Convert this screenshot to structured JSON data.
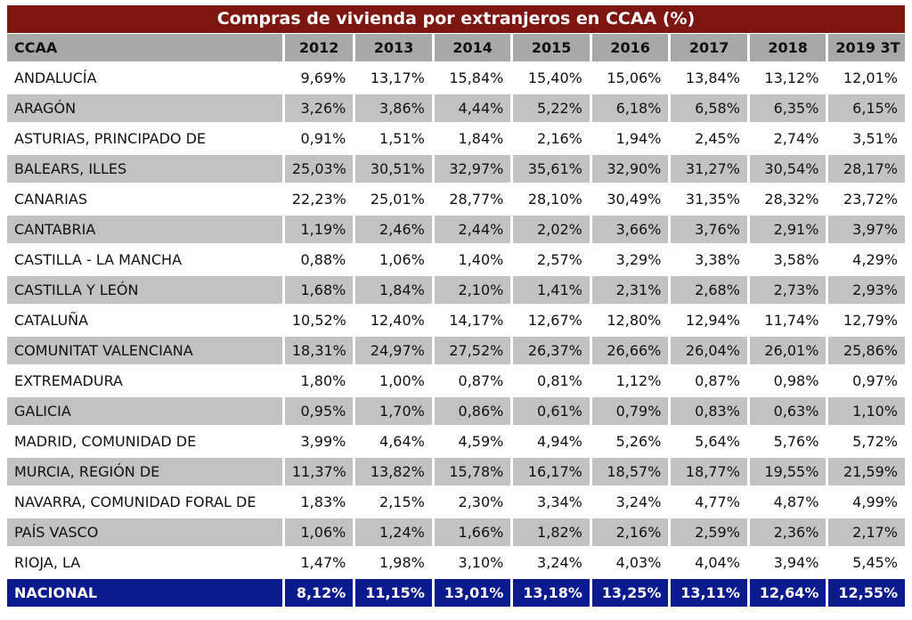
{
  "title": "Compras de vivienda por extranjeros en CCAA (%)",
  "header": [
    "CCAA",
    "2012",
    "2013",
    "2014",
    "2015",
    "2016",
    "2017",
    "2018",
    "2019 3T"
  ],
  "rows": [
    {
      "name": "ANDALUCÍA",
      "values": [
        "9,69%",
        "13,17%",
        "15,84%",
        "15,40%",
        "15,06%",
        "13,84%",
        "13,12%",
        "12,01%"
      ]
    },
    {
      "name": "ARAGÓN",
      "values": [
        "3,26%",
        "3,86%",
        "4,44%",
        "5,22%",
        "6,18%",
        "6,58%",
        "6,35%",
        "6,15%"
      ]
    },
    {
      "name": "ASTURIAS, PRINCIPADO DE",
      "values": [
        "0,91%",
        "1,51%",
        "1,84%",
        "2,16%",
        "1,94%",
        "2,45%",
        "2,74%",
        "3,51%"
      ]
    },
    {
      "name": "BALEARS, ILLES",
      "values": [
        "25,03%",
        "30,51%",
        "32,97%",
        "35,61%",
        "32,90%",
        "31,27%",
        "30,54%",
        "28,17%"
      ]
    },
    {
      "name": "CANARIAS",
      "values": [
        "22,23%",
        "25,01%",
        "28,77%",
        "28,10%",
        "30,49%",
        "31,35%",
        "28,32%",
        "23,72%"
      ]
    },
    {
      "name": "CANTABRIA",
      "values": [
        "1,19%",
        "2,46%",
        "2,44%",
        "2,02%",
        "3,66%",
        "3,76%",
        "2,91%",
        "3,97%"
      ]
    },
    {
      "name": "CASTILLA - LA MANCHA",
      "values": [
        "0,88%",
        "1,06%",
        "1,40%",
        "2,57%",
        "3,29%",
        "3,38%",
        "3,58%",
        "4,29%"
      ]
    },
    {
      "name": "CASTILLA Y LEÓN",
      "values": [
        "1,68%",
        "1,84%",
        "2,10%",
        "1,41%",
        "2,31%",
        "2,68%",
        "2,73%",
        "2,93%"
      ]
    },
    {
      "name": "CATALUÑA",
      "values": [
        "10,52%",
        "12,40%",
        "14,17%",
        "12,67%",
        "12,80%",
        "12,94%",
        "11,74%",
        "12,79%"
      ]
    },
    {
      "name": "COMUNITAT VALENCIANA",
      "values": [
        "18,31%",
        "24,97%",
        "27,52%",
        "26,37%",
        "26,66%",
        "26,04%",
        "26,01%",
        "25,86%"
      ]
    },
    {
      "name": "EXTREMADURA",
      "values": [
        "1,80%",
        "1,00%",
        "0,87%",
        "0,81%",
        "1,12%",
        "0,87%",
        "0,98%",
        "0,97%"
      ]
    },
    {
      "name": "GALICIA",
      "values": [
        "0,95%",
        "1,70%",
        "0,86%",
        "0,61%",
        "0,79%",
        "0,83%",
        "0,63%",
        "1,10%"
      ]
    },
    {
      "name": "MADRID, COMUNIDAD DE",
      "values": [
        "3,99%",
        "4,64%",
        "4,59%",
        "4,94%",
        "5,26%",
        "5,64%",
        "5,76%",
        "5,72%"
      ]
    },
    {
      "name": "MURCIA, REGIÓN DE",
      "values": [
        "11,37%",
        "13,82%",
        "15,78%",
        "16,17%",
        "18,57%",
        "18,77%",
        "19,55%",
        "21,59%"
      ]
    },
    {
      "name": "NAVARRA, COMUNIDAD FORAL DE",
      "values": [
        "1,83%",
        "2,15%",
        "2,30%",
        "3,34%",
        "3,24%",
        "4,77%",
        "4,87%",
        "4,99%"
      ]
    },
    {
      "name": "PAÍS VASCO",
      "values": [
        "1,06%",
        "1,24%",
        "1,66%",
        "1,82%",
        "2,16%",
        "2,59%",
        "2,36%",
        "2,17%"
      ]
    },
    {
      "name": "RIOJA, LA",
      "values": [
        "1,47%",
        "1,98%",
        "3,10%",
        "3,24%",
        "4,03%",
        "4,04%",
        "3,94%",
        "5,45%"
      ]
    }
  ],
  "total": {
    "name": "NACIONAL",
    "values": [
      "8,12%",
      "11,15%",
      "13,01%",
      "13,18%",
      "13,25%",
      "13,11%",
      "12,64%",
      "12,55%"
    ]
  },
  "colors": {
    "title_bg": "#7d1511",
    "header_bg": "#a8a8a8",
    "stripe_bg": "#c2c2c2",
    "total_bg": "#0b1a8c"
  }
}
